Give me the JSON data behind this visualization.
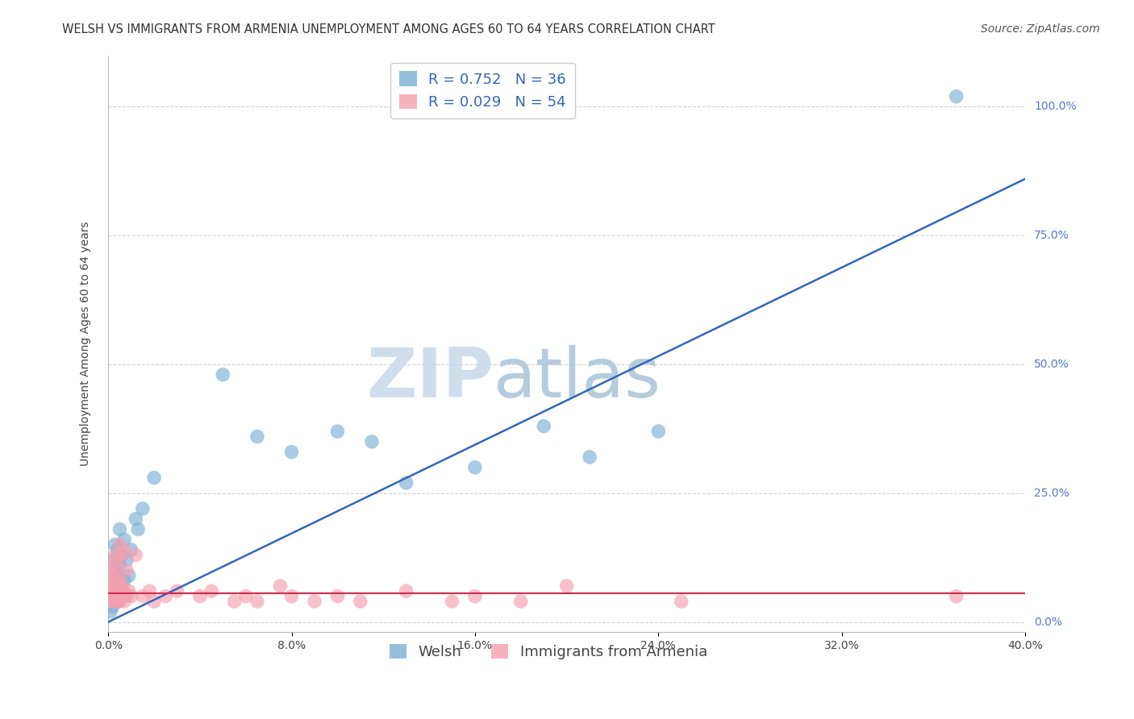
{
  "title": "WELSH VS IMMIGRANTS FROM ARMENIA UNEMPLOYMENT AMONG AGES 60 TO 64 YEARS CORRELATION CHART",
  "source": "Source: ZipAtlas.com",
  "ylabel": "Unemployment Among Ages 60 to 64 years",
  "xlim": [
    0.0,
    0.4
  ],
  "ylim": [
    -0.02,
    1.1
  ],
  "xticks": [
    0.0,
    0.08,
    0.16,
    0.24,
    0.32,
    0.4
  ],
  "xtick_labels": [
    "0.0%",
    "8.0%",
    "16.0%",
    "24.0%",
    "32.0%",
    "40.0%"
  ],
  "yticks": [
    0.0,
    0.25,
    0.5,
    0.75,
    1.0
  ],
  "ytick_labels": [
    "0.0%",
    "25.0%",
    "50.0%",
    "75.0%",
    "100.0%"
  ],
  "welsh_R": 0.752,
  "welsh_N": 36,
  "armenia_R": 0.029,
  "armenia_N": 54,
  "welsh_color": "#7BAFD4",
  "armenia_color": "#F4A0B0",
  "welsh_line_color": "#3366BB",
  "armenia_line_color": "#CC3355",
  "background_color": "#FFFFFF",
  "grid_color": "#CCCCCC",
  "watermark_zip": "ZIP",
  "watermark_atlas": "atlas",
  "watermark_color_zip": "#C8D8E8",
  "watermark_color_atlas": "#A8C4D8",
  "welsh_x": [
    0.001,
    0.001,
    0.002,
    0.002,
    0.002,
    0.003,
    0.003,
    0.003,
    0.004,
    0.004,
    0.004,
    0.005,
    0.005,
    0.005,
    0.006,
    0.006,
    0.007,
    0.007,
    0.008,
    0.009,
    0.01,
    0.012,
    0.013,
    0.015,
    0.02,
    0.05,
    0.065,
    0.08,
    0.1,
    0.115,
    0.13,
    0.16,
    0.19,
    0.21,
    0.24,
    0.37
  ],
  "welsh_y": [
    0.02,
    0.05,
    0.03,
    0.08,
    0.12,
    0.06,
    0.1,
    0.15,
    0.04,
    0.09,
    0.14,
    0.05,
    0.11,
    0.18,
    0.07,
    0.13,
    0.08,
    0.16,
    0.12,
    0.09,
    0.14,
    0.2,
    0.18,
    0.22,
    0.28,
    0.48,
    0.36,
    0.33,
    0.37,
    0.35,
    0.27,
    0.3,
    0.38,
    0.32,
    0.37,
    1.02
  ],
  "armenia_x": [
    0.001,
    0.001,
    0.001,
    0.001,
    0.002,
    0.002,
    0.002,
    0.002,
    0.002,
    0.003,
    0.003,
    0.003,
    0.003,
    0.004,
    0.004,
    0.004,
    0.004,
    0.005,
    0.005,
    0.005,
    0.005,
    0.006,
    0.006,
    0.006,
    0.007,
    0.007,
    0.007,
    0.008,
    0.008,
    0.009,
    0.01,
    0.012,
    0.015,
    0.018,
    0.02,
    0.025,
    0.03,
    0.04,
    0.045,
    0.055,
    0.06,
    0.065,
    0.075,
    0.08,
    0.09,
    0.1,
    0.11,
    0.13,
    0.15,
    0.16,
    0.18,
    0.2,
    0.25,
    0.37
  ],
  "armenia_y": [
    0.04,
    0.05,
    0.06,
    0.08,
    0.04,
    0.06,
    0.07,
    0.09,
    0.11,
    0.05,
    0.07,
    0.1,
    0.13,
    0.04,
    0.06,
    0.08,
    0.12,
    0.04,
    0.06,
    0.08,
    0.15,
    0.05,
    0.07,
    0.13,
    0.04,
    0.06,
    0.14,
    0.05,
    0.1,
    0.06,
    0.05,
    0.13,
    0.05,
    0.06,
    0.04,
    0.05,
    0.06,
    0.05,
    0.06,
    0.04,
    0.05,
    0.04,
    0.07,
    0.05,
    0.04,
    0.05,
    0.04,
    0.06,
    0.04,
    0.05,
    0.04,
    0.07,
    0.04,
    0.05
  ],
  "title_fontsize": 10.5,
  "label_fontsize": 10,
  "tick_fontsize": 10,
  "legend_fontsize": 13,
  "source_fontsize": 10,
  "welsh_line_intercept": 0.0,
  "welsh_line_slope": 2.15,
  "armenia_line_intercept": 0.055,
  "armenia_line_slope": 0.0
}
